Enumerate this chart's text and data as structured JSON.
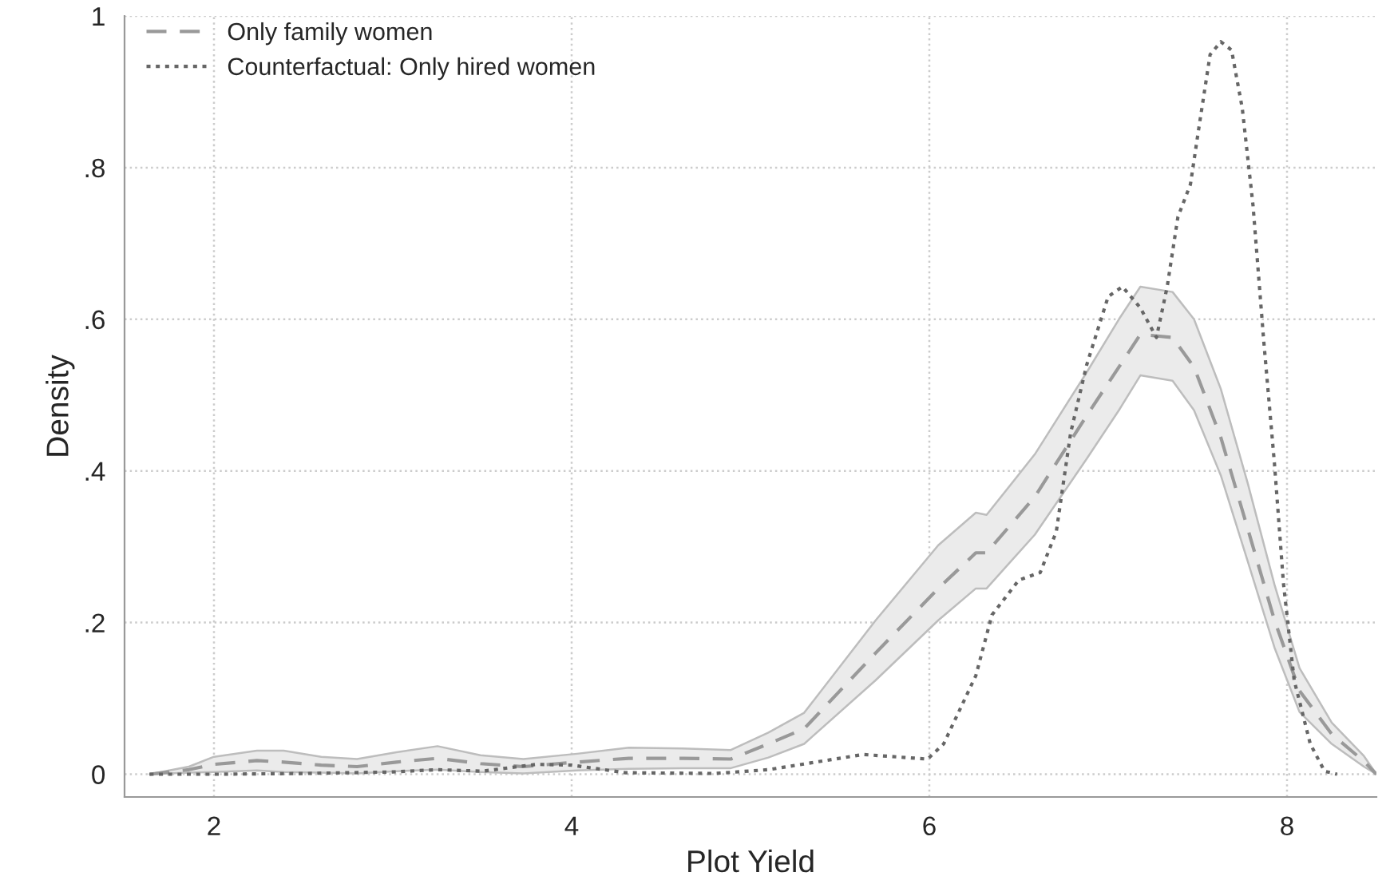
{
  "chart_data": {
    "type": "line",
    "xlabel": "Plot Yield",
    "ylabel": "Density",
    "xlim": [
      1.5,
      8.5
    ],
    "xticks": [
      2,
      4,
      6,
      8
    ],
    "ylim": [
      -0.03,
      1.0
    ],
    "yticks": [
      0,
      {
        "value": 0.2,
        "label": ".2"
      },
      {
        "value": 0.4,
        "label": ".4"
      },
      {
        "value": 0.6,
        "label": ".6"
      },
      {
        "value": 0.8,
        "label": ".8"
      },
      1
    ],
    "grid": true,
    "legend": "top left",
    "marker": "none",
    "series": [
      {
        "name": "Only family women",
        "color": "#999999",
        "line_style": "dashed",
        "x": [
          1.64,
          1.86,
          2.0,
          2.24,
          2.39,
          2.6,
          2.8,
          3.02,
          3.25,
          3.49,
          3.73,
          4.03,
          4.32,
          4.62,
          4.89,
          5.1,
          5.3,
          5.7,
          6.05,
          6.26,
          6.32,
          6.59,
          6.88,
          7.06,
          7.18,
          7.36,
          7.48,
          7.63,
          7.78,
          7.93,
          8.07,
          8.25,
          8.43,
          8.5
        ],
        "values": [
          0,
          0.006,
          0.013,
          0.018,
          0.016,
          0.012,
          0.01,
          0.016,
          0.021,
          0.014,
          0.01,
          0.016,
          0.021,
          0.021,
          0.02,
          0.04,
          0.06,
          0.16,
          0.245,
          0.292,
          0.292,
          0.366,
          0.473,
          0.537,
          0.58,
          0.576,
          0.537,
          0.444,
          0.324,
          0.203,
          0.11,
          0.053,
          0.017,
          0
        ],
        "upper": [
          0,
          0.01,
          0.023,
          0.031,
          0.031,
          0.023,
          0.02,
          0.029,
          0.037,
          0.025,
          0.02,
          0.027,
          0.035,
          0.034,
          0.032,
          0.055,
          0.081,
          0.203,
          0.302,
          0.345,
          0.342,
          0.422,
          0.53,
          0.6,
          0.643,
          0.636,
          0.6,
          0.508,
          0.384,
          0.25,
          0.14,
          0.068,
          0.024,
          0
        ],
        "lower": [
          0,
          0.002,
          0.003,
          0.005,
          0.003,
          0.002,
          0.001,
          0.004,
          0.006,
          0.003,
          0.001,
          0.005,
          0.007,
          0.008,
          0.008,
          0.022,
          0.04,
          0.124,
          0.203,
          0.245,
          0.245,
          0.316,
          0.416,
          0.48,
          0.526,
          0.519,
          0.48,
          0.394,
          0.281,
          0.167,
          0.082,
          0.04,
          0.01,
          0
        ]
      },
      {
        "name": "Counterfactual: Only hired women",
        "color": "#666666",
        "line_style": "dotted",
        "x": [
          1.64,
          2.0,
          2.5,
          3.0,
          3.25,
          3.5,
          3.8,
          4.0,
          4.3,
          4.8,
          5.1,
          5.63,
          5.99,
          6.08,
          6.26,
          6.35,
          6.5,
          6.62,
          6.71,
          6.79,
          6.88,
          7.0,
          7.08,
          7.18,
          7.27,
          7.33,
          7.39,
          7.46,
          7.51,
          7.57,
          7.63,
          7.69,
          7.75,
          7.81,
          7.87,
          7.93,
          7.98,
          8.04,
          8.13,
          8.21,
          8.28
        ],
        "values": [
          0,
          0,
          0.001,
          0.003,
          0.006,
          0.004,
          0.013,
          0.012,
          0.002,
          0.001,
          0.006,
          0.026,
          0.02,
          0.04,
          0.13,
          0.21,
          0.256,
          0.266,
          0.32,
          0.45,
          0.54,
          0.63,
          0.643,
          0.615,
          0.576,
          0.643,
          0.735,
          0.778,
          0.857,
          0.949,
          0.966,
          0.955,
          0.878,
          0.75,
          0.571,
          0.409,
          0.252,
          0.124,
          0.04,
          0.004,
          0
        ]
      }
    ]
  }
}
